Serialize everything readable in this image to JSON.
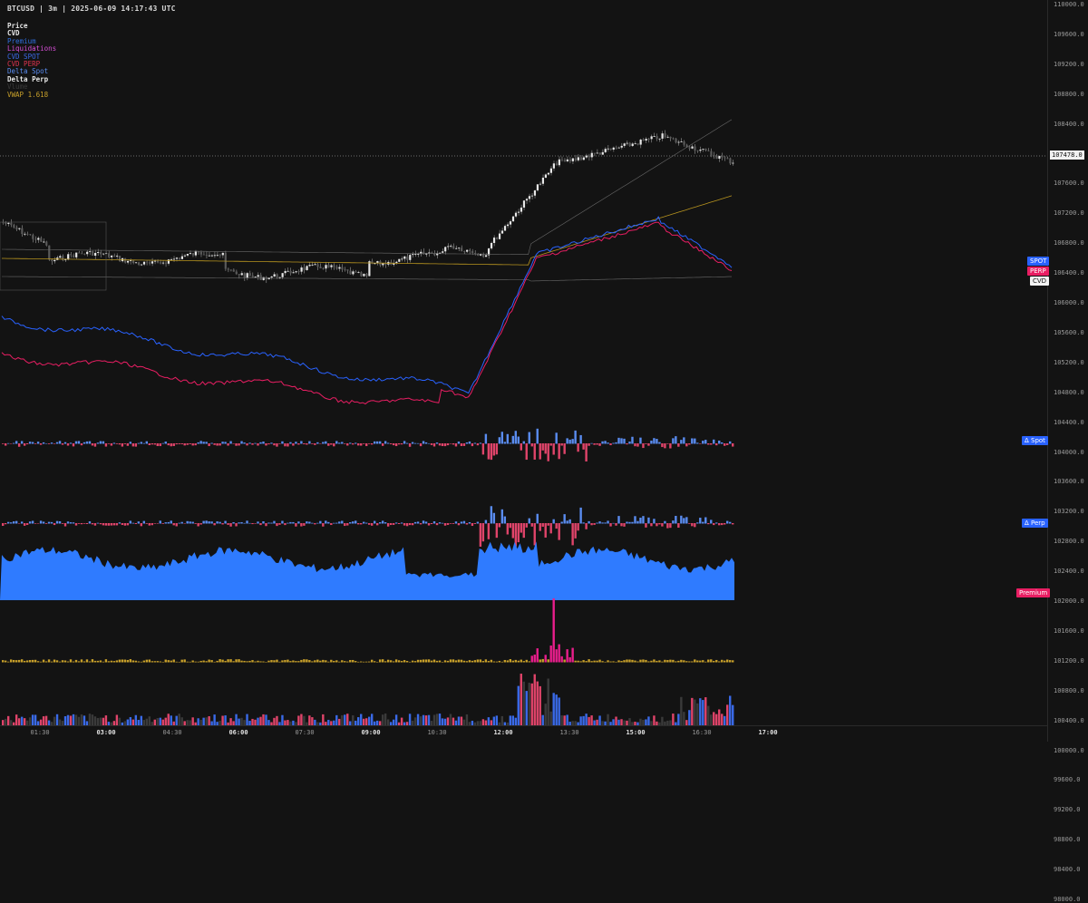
{
  "header": {
    "title": "BTCUSD | 3m | 2025-06-09 14:17:43 UTC"
  },
  "legend": [
    {
      "label": "Price",
      "color": "#e6e6e6"
    },
    {
      "label": "CVD",
      "color": "#e6e6e6"
    },
    {
      "label": "Premium",
      "color": "#2f6fe0"
    },
    {
      "label": "Liquidations",
      "color": "#d64fd6"
    },
    {
      "label": "CVD SPOT",
      "color": "#3a6ae8"
    },
    {
      "label": "CVD PERP",
      "color": "#e0344f"
    },
    {
      "label": "Delta Spot",
      "color": "#5a8cf0"
    },
    {
      "label": "Delta Perp",
      "color": "#e6e6e6"
    },
    {
      "label": "Vlume",
      "color": "#3a3a3a"
    },
    {
      "label": "VWAP 1.618",
      "color": "#c8a02a"
    }
  ],
  "price_axis": {
    "ticks": [
      "110000.0",
      "109600.0",
      "109200.0",
      "108800.0",
      "108400.0",
      "108000.0",
      "107600.0",
      "107200.0",
      "106800.0",
      "106400.0",
      "106000.0",
      "105600.0",
      "105200.0",
      "104800.0",
      "104400.0",
      "104000.0",
      "103600.0",
      "103200.0",
      "102800.0",
      "102400.0",
      "102000.0",
      "101600.0",
      "101200.0",
      "100800.0",
      "100400.0",
      "100000.0",
      "99600.0",
      "99200.0",
      "98800.0",
      "98400.0",
      "98000.0"
    ]
  },
  "time_axis": {
    "ticks": [
      {
        "label": "01:30",
        "bold": false
      },
      {
        "label": "03:00",
        "bold": true
      },
      {
        "label": "04:30",
        "bold": false
      },
      {
        "label": "06:00",
        "bold": true
      },
      {
        "label": "07:30",
        "bold": false
      },
      {
        "label": "09:00",
        "bold": true
      },
      {
        "label": "10:30",
        "bold": false
      },
      {
        "label": "12:00",
        "bold": true
      },
      {
        "label": "13:30",
        "bold": false
      },
      {
        "label": "15:00",
        "bold": true
      },
      {
        "label": "16:30",
        "bold": false
      },
      {
        "label": "17:00",
        "bold": true
      }
    ]
  },
  "last_price": "107478.0",
  "tags": {
    "spot": "SPOT",
    "perp": "PERP",
    "cvd": "CVD",
    "delta_spot": "Δ Spot",
    "delta_perp": "Δ Perp",
    "premium": "Premium"
  },
  "colors": {
    "spot": "#2962ff",
    "perp": "#e91e63",
    "cvd": "#ffffff",
    "premium": "#e91e63",
    "vwap": "#b8941f",
    "area": "#2f7bff"
  }
}
